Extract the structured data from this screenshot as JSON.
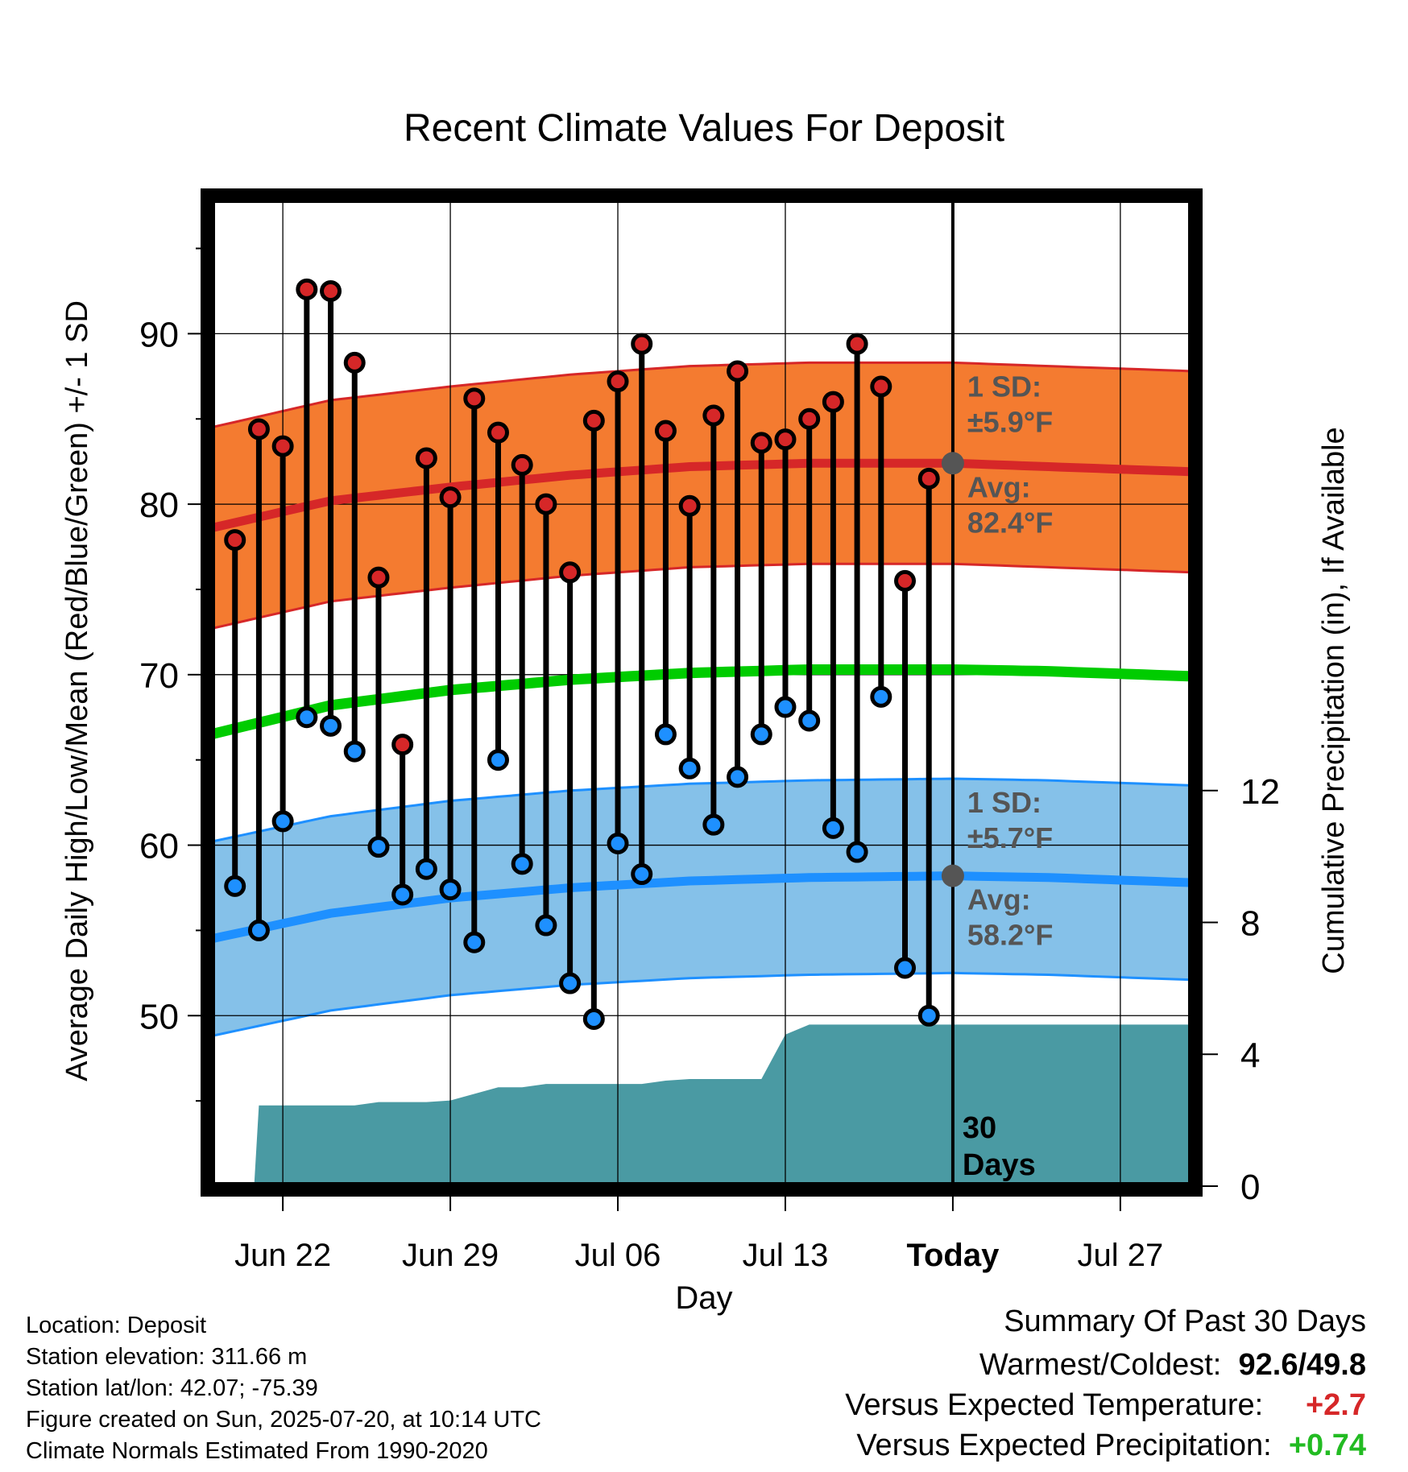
{
  "chart_data": {
    "type": "line",
    "title": "Recent Climate Values For Deposit",
    "xlabel": "Day",
    "ylabel_left": "Average Daily High/Low/Mean (Red/Blue/Green) +/- 1 SD",
    "ylabel_right": "Cumulative Precipitation (in), If Available",
    "x_ticks": [
      {
        "day": 3,
        "label": "Jun 22"
      },
      {
        "day": 10,
        "label": "Jun 29"
      },
      {
        "day": 17,
        "label": "Jul 06"
      },
      {
        "day": 24,
        "label": "Jul 13"
      },
      {
        "day": 31,
        "label": "Today"
      },
      {
        "day": 38,
        "label": "Jul 27"
      }
    ],
    "ylim_left": [
      40,
      98
    ],
    "yticks_left": [
      50,
      60,
      70,
      80,
      90
    ],
    "ylim_right": [
      0,
      30
    ],
    "yticks_right": [
      0,
      4,
      8,
      12
    ],
    "xlim": [
      0,
      41
    ],
    "today_day": 31,
    "grid": true,
    "daily": [
      {
        "day": 1,
        "high": 77.9,
        "low": 57.6
      },
      {
        "day": 2,
        "high": 84.4,
        "low": 55.0
      },
      {
        "day": 3,
        "high": 83.4,
        "low": 61.4
      },
      {
        "day": 4,
        "high": 92.6,
        "low": 67.5
      },
      {
        "day": 5,
        "high": 92.5,
        "low": 67.0
      },
      {
        "day": 6,
        "high": 88.3,
        "low": 65.5
      },
      {
        "day": 7,
        "high": 75.7,
        "low": 59.9
      },
      {
        "day": 8,
        "high": 65.9,
        "low": 57.1
      },
      {
        "day": 9,
        "high": 82.7,
        "low": 58.6
      },
      {
        "day": 10,
        "high": 80.4,
        "low": 57.4
      },
      {
        "day": 11,
        "high": 86.2,
        "low": 54.3
      },
      {
        "day": 12,
        "high": 84.2,
        "low": 65.0
      },
      {
        "day": 13,
        "high": 82.3,
        "low": 58.9
      },
      {
        "day": 14,
        "high": 80.0,
        "low": 55.3
      },
      {
        "day": 15,
        "high": 76.0,
        "low": 51.9
      },
      {
        "day": 16,
        "high": 84.9,
        "low": 49.8
      },
      {
        "day": 17,
        "high": 87.2,
        "low": 60.1
      },
      {
        "day": 18,
        "high": 89.4,
        "low": 58.3
      },
      {
        "day": 19,
        "high": 84.3,
        "low": 66.5
      },
      {
        "day": 20,
        "high": 79.9,
        "low": 64.5
      },
      {
        "day": 21,
        "high": 85.2,
        "low": 61.2
      },
      {
        "day": 22,
        "high": 87.8,
        "low": 64.0
      },
      {
        "day": 23,
        "high": 83.6,
        "low": 66.5
      },
      {
        "day": 24,
        "high": 83.8,
        "low": 68.1
      },
      {
        "day": 25,
        "high": 85.0,
        "low": 67.3
      },
      {
        "day": 26,
        "high": 86.0,
        "low": 61.0
      },
      {
        "day": 27,
        "high": 89.4,
        "low": 59.6
      },
      {
        "day": 28,
        "high": 86.9,
        "low": 68.7
      },
      {
        "day": 29,
        "high": 75.5,
        "low": 52.8
      },
      {
        "day": 30,
        "high": 81.5,
        "low": 50.0
      }
    ],
    "normals": {
      "days": [
        0,
        5,
        10,
        15,
        20,
        25,
        31,
        35,
        41
      ],
      "high_avg": [
        78.6,
        80.2,
        81.0,
        81.7,
        82.2,
        82.4,
        82.4,
        82.2,
        81.9
      ],
      "high_sd": 5.9,
      "low_avg": [
        54.5,
        56.0,
        56.9,
        57.5,
        57.9,
        58.1,
        58.2,
        58.1,
        57.8
      ],
      "low_sd": 5.7,
      "mean_avg": [
        66.5,
        68.2,
        69.1,
        69.7,
        70.1,
        70.3,
        70.3,
        70.2,
        69.9
      ]
    },
    "precip_cumulative": {
      "days": [
        0,
        1.8,
        2.0,
        6,
        7,
        9,
        10,
        12,
        13,
        14,
        18,
        19,
        20,
        23,
        24,
        25,
        26,
        30,
        41
      ],
      "values": [
        0,
        0,
        2.45,
        2.45,
        2.55,
        2.55,
        2.6,
        3.0,
        3.0,
        3.1,
        3.1,
        3.2,
        3.25,
        3.25,
        4.6,
        4.9,
        4.9,
        4.9,
        4.9
      ]
    },
    "annotations": {
      "high_sd_label": "1 SD:",
      "high_sd_value": "±5.9°F",
      "high_avg_label": "Avg:",
      "high_avg_value": "82.4°F",
      "low_sd_label": "1 SD:",
      "low_sd_value": "±5.7°F",
      "low_avg_label": "Avg:",
      "low_avg_value": "58.2°F",
      "window_label_1": "30",
      "window_label_2": "Days"
    },
    "colors": {
      "high_band": "#f47b30",
      "high_line": "#d62728",
      "low_band": "#85c1e9",
      "low_line": "#1e90ff",
      "mean_line": "#00cc00",
      "precip": "#4a9aa3",
      "high_marker": "#d62728",
      "low_marker": "#1e90ff",
      "today_marker": "#555555"
    }
  },
  "info": {
    "location": "Location: Deposit",
    "elevation": "Station elevation: 311.66 m",
    "latlon": "Station lat/lon: 42.07; -75.39",
    "created": "Figure created on Sun, 2025-07-20, at 10:14 UTC",
    "normals": "Climate Normals Estimated From 1990-2020"
  },
  "summary": {
    "title": "Summary Of Past 30 Days",
    "warm_cold_label": "Warmest/Coldest:",
    "warmest": "92.6",
    "coldest": "49.8",
    "temp_label": "Versus Expected Temperature:",
    "temp_value": "+2.7",
    "temp_color": "#d62728",
    "precip_label": "Versus Expected Precipitation:",
    "precip_value": "+0.74",
    "precip_color": "#22bb22"
  }
}
